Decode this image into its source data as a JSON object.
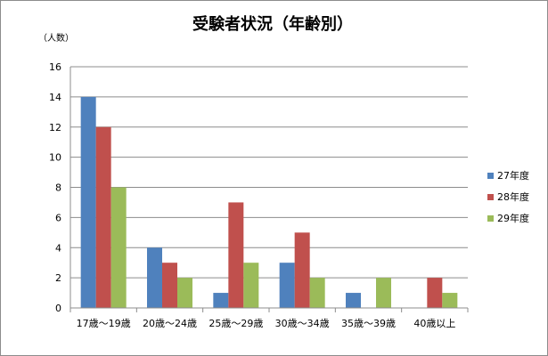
{
  "chart_data": {
    "type": "bar",
    "title": "受験者状況（年齢別）",
    "ylabel": "（人数）",
    "xlabel": "",
    "ylim": [
      0,
      16
    ],
    "yticks": [
      0,
      2,
      4,
      6,
      8,
      10,
      12,
      14,
      16
    ],
    "grid": true,
    "legend_position": "right",
    "categories": [
      "17歳～19歳",
      "20歳～24歳",
      "25歳～29歳",
      "30歳～34歳",
      "35歳～39歳",
      "40歳以上"
    ],
    "series": [
      {
        "name": "27年度",
        "color": "#4f81bd",
        "values": [
          14,
          4,
          1,
          3,
          1,
          0
        ]
      },
      {
        "name": "28年度",
        "color": "#c0504d",
        "values": [
          12,
          3,
          7,
          5,
          0,
          2
        ]
      },
      {
        "name": "29年度",
        "color": "#9bbb59",
        "values": [
          8,
          2,
          3,
          2,
          2,
          1
        ]
      }
    ]
  }
}
